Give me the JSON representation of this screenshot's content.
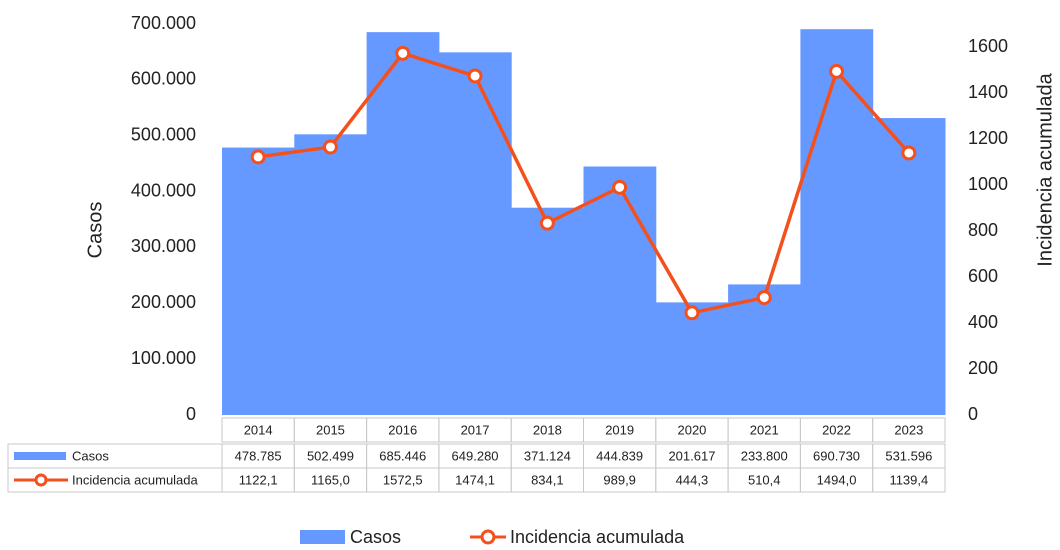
{
  "chart_data": {
    "type": "combo",
    "categories": [
      "2014",
      "2015",
      "2016",
      "2017",
      "2018",
      "2019",
      "2020",
      "2021",
      "2022",
      "2023"
    ],
    "y_label": "Casos",
    "y2_label": "Incidencia acumulada",
    "ylim": [
      0,
      700000
    ],
    "yticks": [
      0,
      {
        "value": 100000,
        "label": "100.000"
      },
      {
        "value": 200000,
        "label": "200.000"
      },
      {
        "value": 300000,
        "label": "300.000"
      },
      {
        "value": 400000,
        "label": "400.000"
      },
      {
        "value": 500000,
        "label": "500.000"
      },
      {
        "value": 600000,
        "label": "600.000"
      },
      {
        "value": 700000,
        "label": "700.000"
      }
    ],
    "y2lim": [
      0,
      1700
    ],
    "y2ticks": [
      0,
      200,
      400,
      600,
      800,
      1000,
      1200,
      1400,
      1600
    ],
    "series": [
      {
        "name": "Casos",
        "type": "bar",
        "color": "#6699ff",
        "values": [
          478785,
          502499,
          685446,
          649280,
          371124,
          444839,
          201617,
          233800,
          690730,
          531596
        ],
        "value_labels": [
          "478.785",
          "502.499",
          "685.446",
          "649.280",
          "371.124",
          "444.839",
          "201.617",
          "233.800",
          "690.730",
          "531.596"
        ]
      },
      {
        "name": "Incidencia acumulada",
        "type": "line",
        "axis": "y2",
        "color": "#f4501e",
        "values": [
          1122.1,
          1165.0,
          1572.5,
          1474.1,
          834.1,
          989.9,
          444.3,
          510.4,
          1494.0,
          1139.4
        ],
        "value_labels": [
          "1122,1",
          "1165,0",
          "1572,5",
          "1474,1",
          "834,1",
          "989,9",
          "444,3",
          "510,4",
          "1494,0",
          "1139,4"
        ]
      }
    ]
  }
}
